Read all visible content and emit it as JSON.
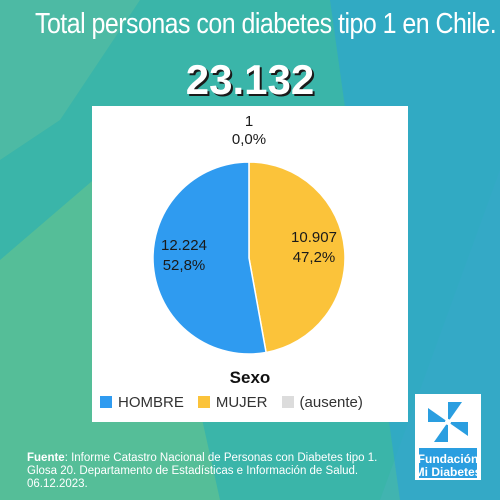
{
  "header": {
    "title": "Total personas con diabetes tipo 1 en Chile.",
    "total": "23.132"
  },
  "chart_data": {
    "type": "pie",
    "legend_title": "Sexo",
    "legend_position": "bottom",
    "slices": [
      {
        "label": "HOMBRE",
        "value": 12224,
        "value_text": "12.224",
        "percent_text": "52,8%",
        "color": "#2f9bf0"
      },
      {
        "label": "MUJER",
        "value": 10907,
        "value_text": "10.907",
        "percent_text": "47,2%",
        "color": "#fbc33a"
      },
      {
        "label": "(ausente)",
        "value": 1,
        "value_text": "1",
        "percent_text": "0,0%",
        "color": "#dcdcdc"
      }
    ]
  },
  "footer": {
    "source_label": "Fuente",
    "source_text": ": Informe Catastro Nacional de Personas con Diabetes tipo 1. Glosa 20. Departamento de Estadísticas e Información de Salud. 06.12.2023."
  },
  "logo": {
    "line1": "Fundación",
    "line2": "Mi Diabetes"
  },
  "colors": {
    "background_teal": "#3bb6aa",
    "background_blue": "#2a9ee0",
    "background_green": "#8ccf7e"
  }
}
